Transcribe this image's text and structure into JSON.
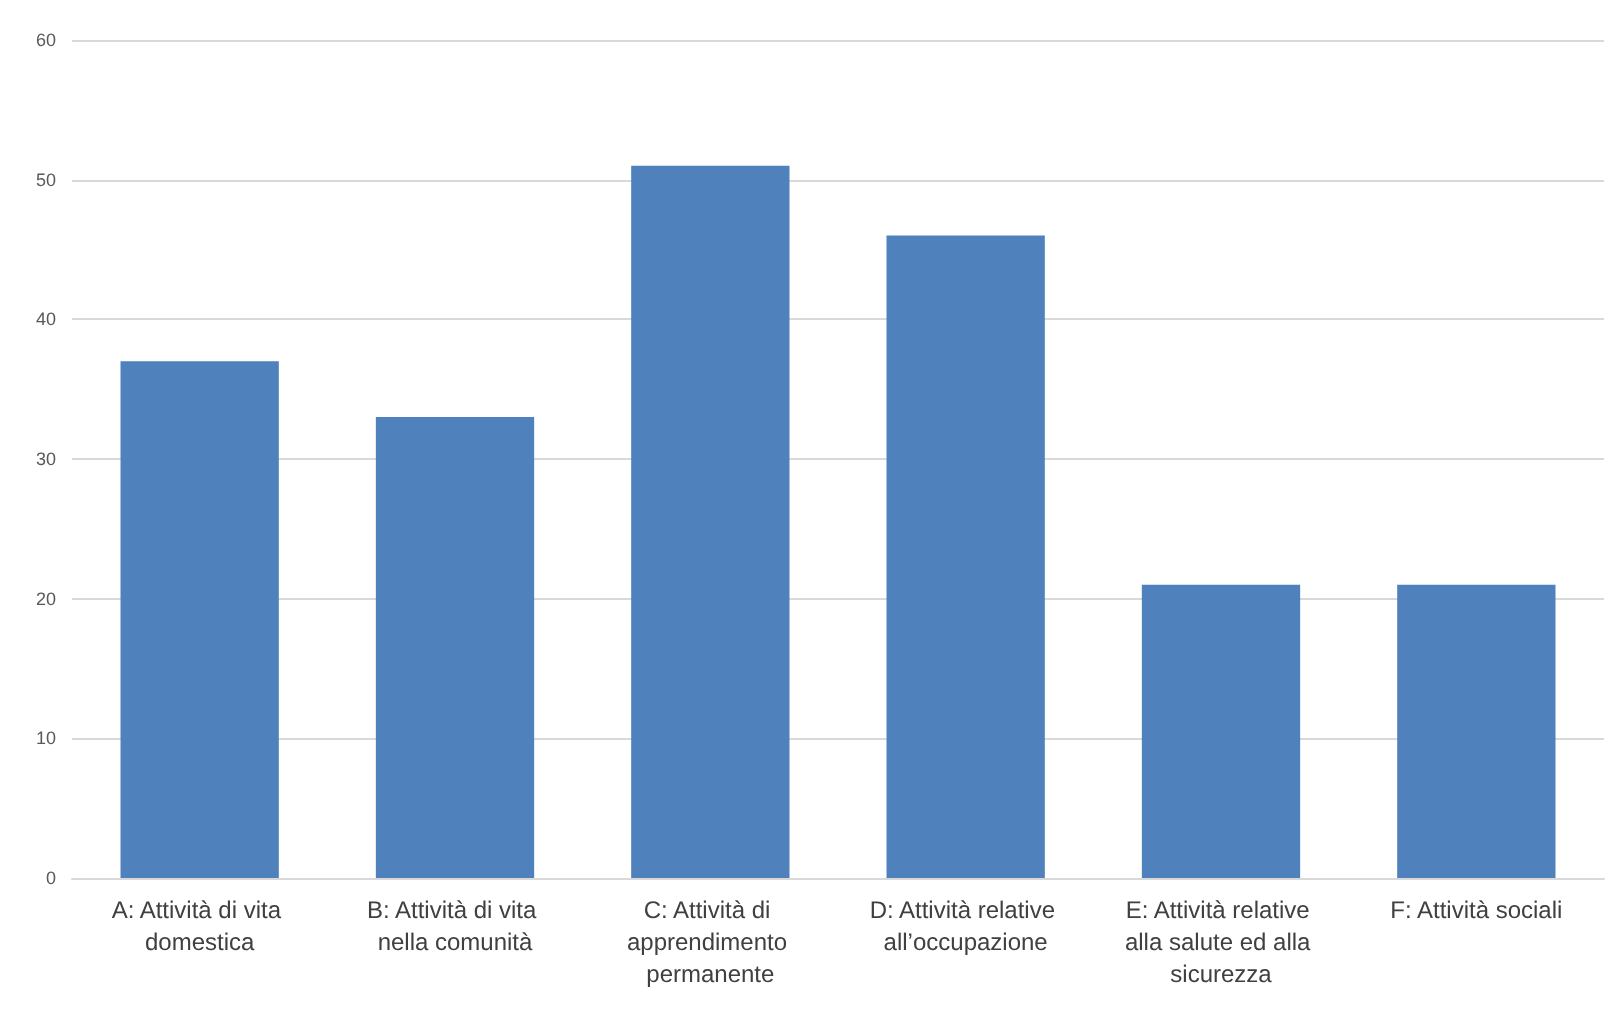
{
  "chart_data": {
    "type": "bar",
    "categories": [
      "A: Attività di vita domestica",
      "B: Attività di vita nella comunità",
      "C: Attività di apprendimento permanente",
      "D: Attività relative all’occupazione",
      "E: Attività relative alla salute ed alla sicurezza",
      "F: Attività sociali"
    ],
    "values": [
      37,
      33,
      51,
      46,
      21,
      21
    ],
    "color": "#4f81bd",
    "ylim": [
      0,
      60
    ],
    "yticks": [
      0,
      10,
      20,
      30,
      40,
      50,
      60
    ],
    "grid": "y"
  }
}
